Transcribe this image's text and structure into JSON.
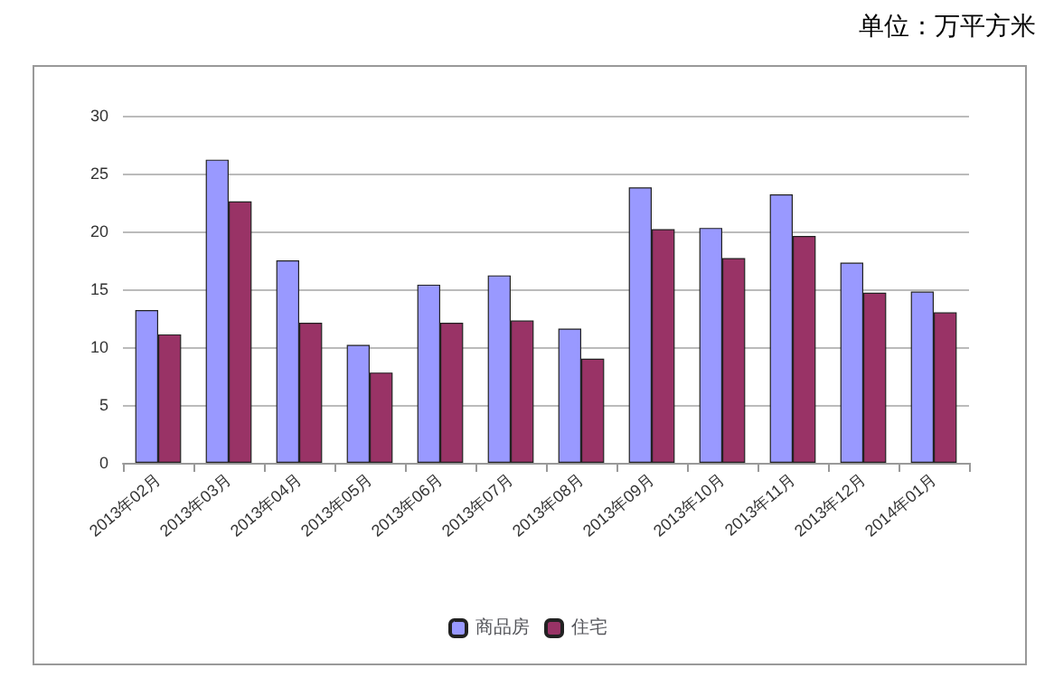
{
  "chart_data": {
    "type": "bar",
    "annotations": [
      "单位：万平方米"
    ],
    "categories": [
      "2013年02月",
      "2013年03月",
      "2013年04月",
      "2013年05月",
      "2013年06月",
      "2013年07月",
      "2013年08月",
      "2013年09月",
      "2013年10月",
      "2013年11月",
      "2013年12月",
      "2014年01月"
    ],
    "series": [
      {
        "name": "商品房",
        "color": "#9999ff",
        "values": [
          13.2,
          26.2,
          17.5,
          10.2,
          15.4,
          16.2,
          11.6,
          23.8,
          20.3,
          23.2,
          17.3,
          14.8
        ]
      },
      {
        "name": "住宅",
        "color": "#993366",
        "values": [
          11.1,
          22.6,
          12.1,
          7.8,
          12.1,
          12.3,
          9.0,
          20.2,
          17.7,
          19.6,
          14.7,
          13.0
        ]
      }
    ],
    "ylim": [
      0,
      30
    ],
    "yticks": [
      0,
      5,
      10,
      15,
      20,
      25,
      30
    ],
    "grid": "y",
    "legend": "bottom"
  }
}
